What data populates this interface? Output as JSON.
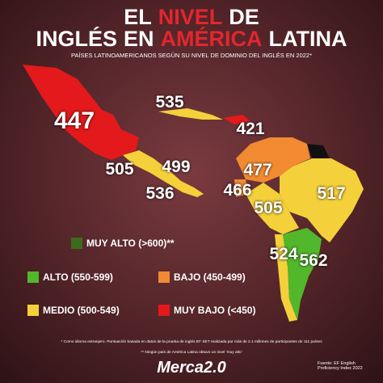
{
  "header": {
    "title_line1": [
      "EL",
      "NIVEL",
      "DE"
    ],
    "title_line2": [
      "INGLÉS",
      "EN",
      "AMÉRICA",
      "LATINA"
    ],
    "subtitle": "PAÍSES LATINOAMERICANOS SEGÚN SU NIVEL DE DOMINIO DEL INGLÉS EN 2022*"
  },
  "map_labels": [
    447,
    535,
    421,
    505,
    499,
    536,
    477,
    466,
    505,
    517,
    524,
    562
  ],
  "legend": [
    {
      "label": "MUY ALTO (>600)**",
      "color": "#3d6b1c"
    },
    {
      "label": "ALTO (550-599)",
      "color": "#52b72a"
    },
    {
      "label": "BAJO (450-499)",
      "color": "#f28a32"
    },
    {
      "label": "MEDIO (500-549)",
      "color": "#f4d03a"
    },
    {
      "label": "MUY BAJO (<450)",
      "color": "#e3191c"
    }
  ],
  "footnotes": [
    "* Como idioma extranjero. Puntuación basada en datos de la prueba de inglés EF SET realizada por más de 2.1 millones de participantes de 111 países",
    "** Ningún país de América Latina obtuvo un nivel 'muy alto'"
  ],
  "source": "Fuente: EF English Proficiency Index 2022",
  "logo": "Merca2.0"
}
